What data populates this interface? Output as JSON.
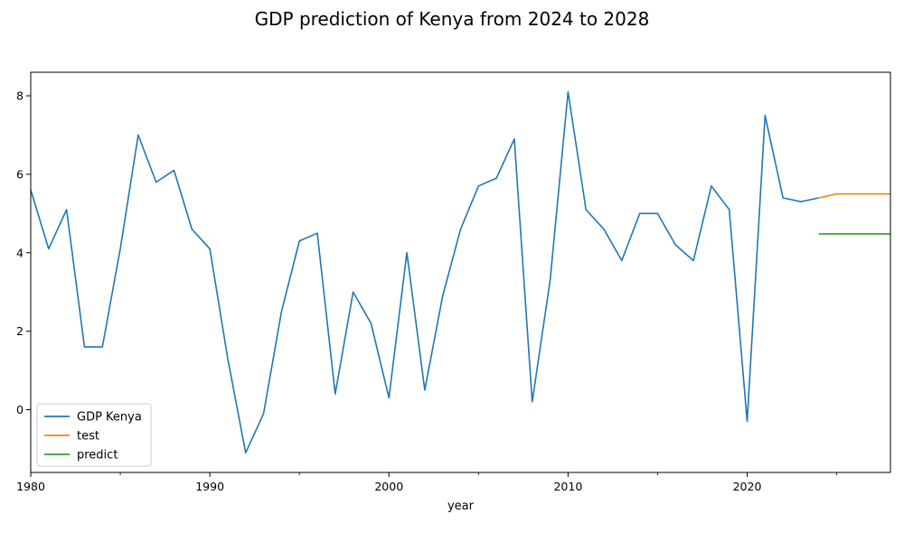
{
  "chart_data": {
    "type": "line",
    "title": "GDP prediction of Kenya from 2024 to 2028",
    "xlabel": "year",
    "ylabel": "",
    "xlim": [
      1980,
      2028
    ],
    "ylim": [
      -1.6,
      8.6
    ],
    "x_ticks": [
      1980,
      1990,
      2000,
      2010,
      2020
    ],
    "y_ticks": [
      0,
      2,
      4,
      6,
      8
    ],
    "grid": false,
    "legend_position": "lower-left",
    "series": [
      {
        "name": "GDP Kenya",
        "color": "#1f77b4",
        "x": [
          1980,
          1981,
          1982,
          1983,
          1984,
          1985,
          1986,
          1987,
          1988,
          1989,
          1990,
          1991,
          1992,
          1993,
          1994,
          1995,
          1996,
          1997,
          1998,
          1999,
          2000,
          2001,
          2002,
          2003,
          2004,
          2005,
          2006,
          2007,
          2008,
          2009,
          2010,
          2011,
          2012,
          2013,
          2014,
          2015,
          2016,
          2017,
          2018,
          2019,
          2020,
          2021,
          2022,
          2023,
          2024
        ],
        "y": [
          5.6,
          4.1,
          5.1,
          1.6,
          1.6,
          4.1,
          7.0,
          5.8,
          6.1,
          4.6,
          4.1,
          1.3,
          -1.1,
          -0.1,
          2.5,
          4.3,
          4.5,
          0.4,
          3.0,
          2.2,
          0.3,
          4.0,
          0.5,
          2.9,
          4.6,
          5.7,
          5.9,
          6.9,
          0.2,
          3.3,
          8.1,
          5.1,
          4.6,
          3.8,
          5.0,
          5.0,
          4.2,
          3.8,
          5.7,
          5.1,
          -0.3,
          7.5,
          5.4,
          5.3,
          5.4
        ]
      },
      {
        "name": "test",
        "color": "#ff7f0e",
        "x": [
          2024,
          2025,
          2026,
          2027,
          2028
        ],
        "y": [
          5.4,
          5.5,
          5.5,
          5.5,
          5.5
        ]
      },
      {
        "name": "predict",
        "color": "#2ca02c",
        "x": [
          2024,
          2025,
          2026,
          2027,
          2028
        ],
        "y": [
          4.48,
          4.48,
          4.48,
          4.48,
          4.48
        ]
      }
    ]
  }
}
